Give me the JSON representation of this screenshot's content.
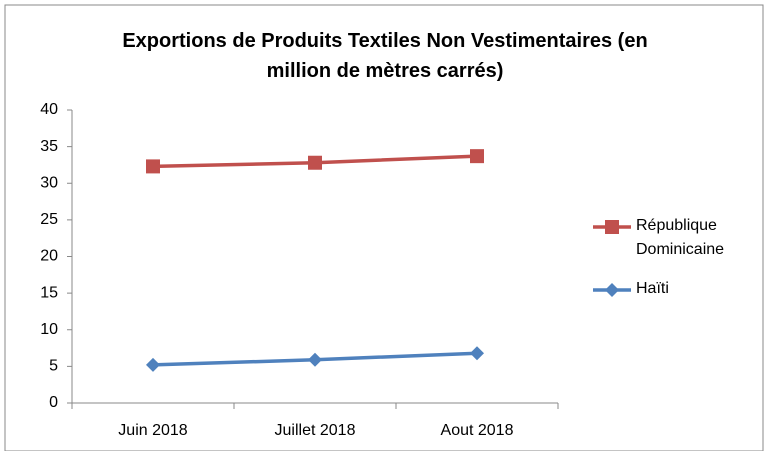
{
  "chart_data": {
    "type": "line",
    "title": "Exportions de Produits Textiles Non Vestimentaires (en million de mètres carrés)",
    "categories": [
      "Juin 2018",
      "Juillet 2018",
      "Aout 2018"
    ],
    "series": [
      {
        "name": "République Dominicaine",
        "color": "#c0504d",
        "marker": "square",
        "values": [
          32.3,
          32.8,
          33.7
        ]
      },
      {
        "name": "Haïti",
        "color": "#4f81bd",
        "marker": "diamond",
        "values": [
          5.2,
          5.9,
          6.8
        ]
      }
    ],
    "ylim": [
      0,
      40
    ],
    "yticks": [
      0,
      5,
      10,
      15,
      20,
      25,
      30,
      35,
      40
    ],
    "grid": false,
    "legend": "right"
  }
}
